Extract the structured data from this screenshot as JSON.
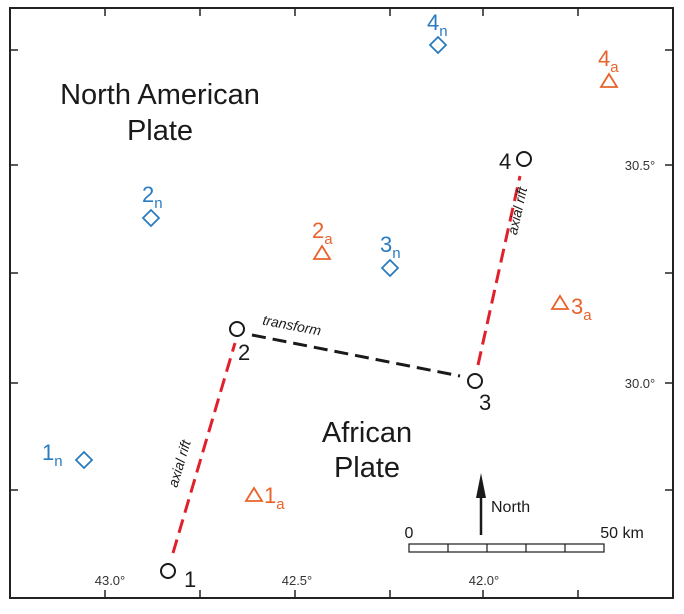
{
  "plates": [
    {
      "lines": [
        "North American",
        "Plate"
      ]
    },
    {
      "lines": [
        "African",
        "Plate"
      ]
    }
  ],
  "ridge_points": [
    "1",
    "2",
    "3",
    "4"
  ],
  "segment_labels": {
    "rift": "axial rift",
    "transform": "transform"
  },
  "north_american_sites": [
    {
      "number": "1",
      "subscript": "n"
    },
    {
      "number": "2",
      "subscript": "n"
    },
    {
      "number": "3",
      "subscript": "n"
    },
    {
      "number": "4",
      "subscript": "n"
    }
  ],
  "african_sites": [
    {
      "number": "1",
      "subscript": "a"
    },
    {
      "number": "2",
      "subscript": "a"
    },
    {
      "number": "3",
      "subscript": "a"
    },
    {
      "number": "4",
      "subscript": "a"
    }
  ],
  "longitude_labels": [
    "43.0°",
    "42.5°",
    "42.0°"
  ],
  "latitude_labels": [
    "30.5°",
    "30.0°"
  ],
  "north": "North",
  "scale": {
    "start": "0",
    "end": "50 km"
  }
}
